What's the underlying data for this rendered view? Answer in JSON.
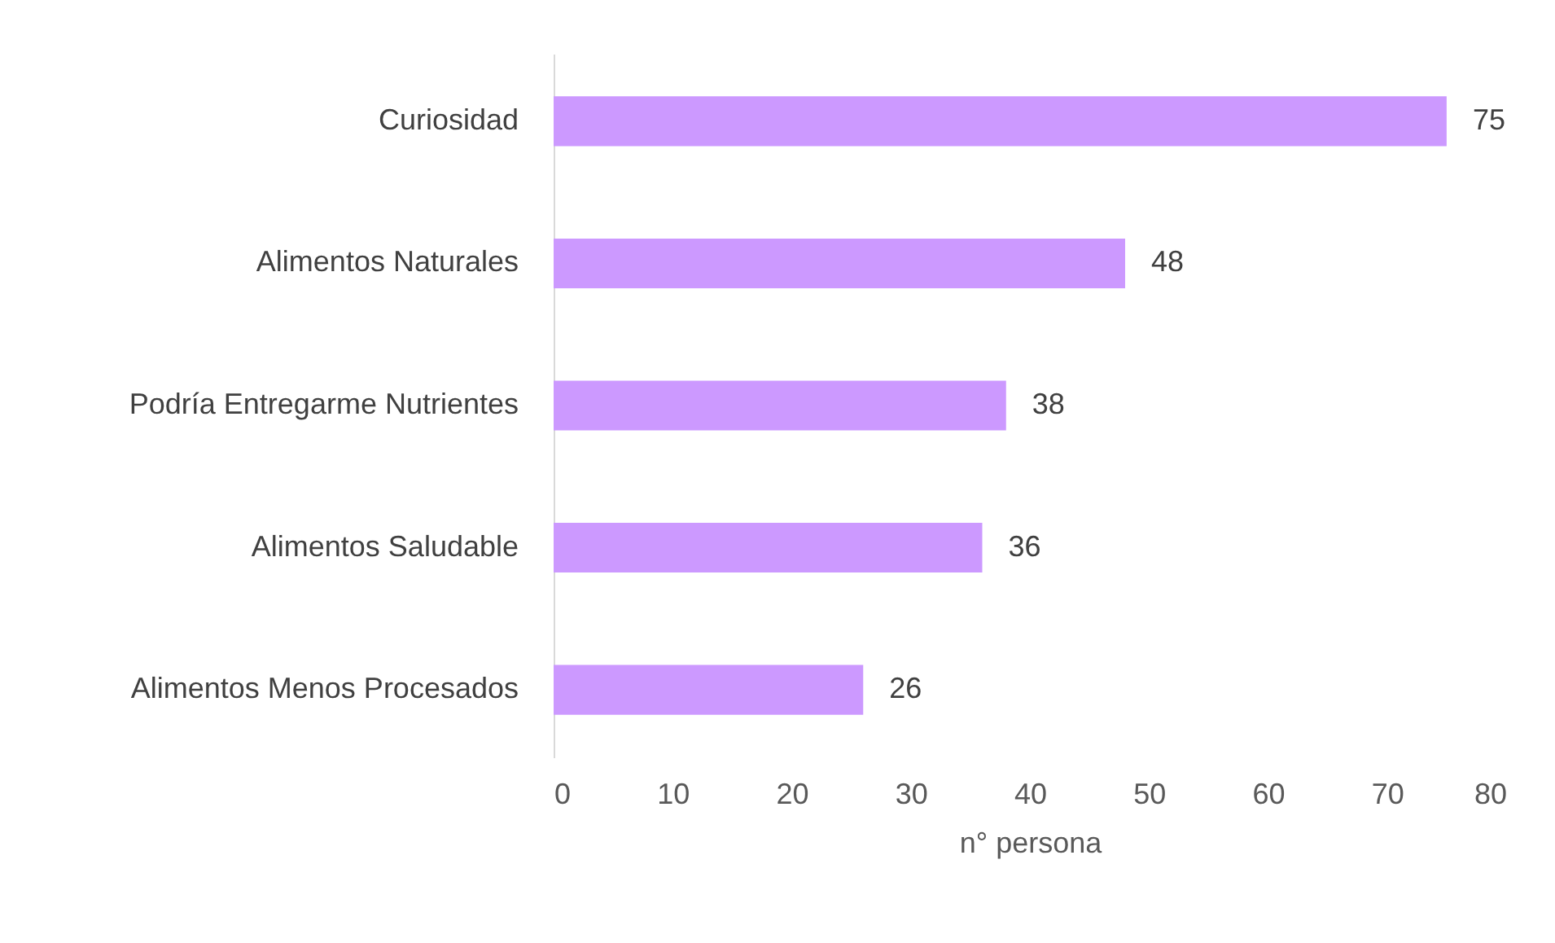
{
  "chart_data": {
    "type": "bar",
    "orientation": "horizontal",
    "xlabel": "n° persona",
    "categories": [
      "Curiosidad",
      "Alimentos Naturales",
      "Podría Entregarme Nutrientes",
      "Alimentos Saludable",
      "Alimentos Menos Procesados"
    ],
    "values": [
      75,
      48,
      38,
      36,
      26
    ],
    "color": "#cc99ff",
    "data_labels": true,
    "grid": false,
    "xlim": [
      0,
      80
    ],
    "xticks": [
      0,
      10,
      20,
      30,
      40,
      50,
      60,
      70,
      80
    ]
  }
}
